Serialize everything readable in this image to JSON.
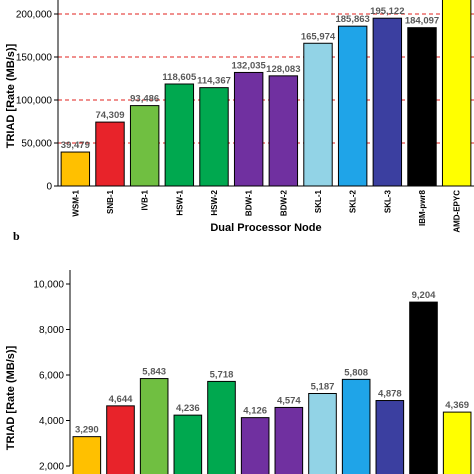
{
  "panel_label": "b",
  "colors": {
    "WSM": "#ffc000",
    "SNB": "#e8232a",
    "IVB": "#70bf41",
    "HSW": "#00a84f",
    "BDW": "#7030a0",
    "SKL-1": "#92d3e6",
    "SKL-2": "#1fa4e8",
    "SKL-3": "#3b3fa0",
    "IBM": "#000000",
    "AMD": "#ffff00",
    "reference_line": "#e0201e"
  },
  "chart_data": [
    {
      "type": "bar",
      "title": "",
      "xlabel": "Dual Processor Node",
      "ylabel": "TRIAD [Rate (MB/s)]",
      "categories": [
        "WSM-1",
        "SNB-1",
        "IVB-1",
        "HSW-1",
        "HSW-2",
        "BDW-1",
        "BDW-2",
        "SKL-1",
        "SKL-2",
        "SKL-3",
        "IBM-pwr8",
        "AMD-EPYC"
      ],
      "values": [
        39479,
        74309,
        93486,
        118605,
        114367,
        132035,
        128083,
        165974,
        185863,
        195122,
        184097,
        225000
      ],
      "value_labels": [
        "39,479",
        "74,309",
        "93,486",
        "118,605",
        "114,367",
        "132,035",
        "128,083",
        "165,974",
        "185,863",
        "195,122",
        "184,097",
        null
      ],
      "bar_colors": [
        "WSM",
        "SNB",
        "IVB",
        "HSW",
        "HSW",
        "BDW",
        "BDW",
        "SKL-1",
        "SKL-2",
        "SKL-3",
        "IBM",
        "AMD"
      ],
      "yticks": [
        "0",
        "50,000",
        "100,000",
        "150,000",
        "200,000"
      ],
      "ylim": [
        0,
        200000
      ],
      "reference_lines": [
        50000,
        100000,
        150000,
        200000
      ],
      "grid": false
    },
    {
      "type": "bar",
      "title": "",
      "xlabel": "",
      "ylabel": "TRIAD [Rate (MB/s)]",
      "values": [
        3290,
        4644,
        5843,
        4236,
        5718,
        4126,
        4574,
        5187,
        5808,
        4878,
        9204,
        4369
      ],
      "value_labels": [
        "3,290",
        "4,644",
        "5,843",
        "4,236",
        "5,718",
        "4,126",
        "4,574",
        "5,187",
        "5,808",
        "4,878",
        "9,204",
        "4,369"
      ],
      "bar_colors": [
        "WSM",
        "SNB",
        "IVB",
        "HSW",
        "HSW",
        "BDW",
        "BDW",
        "SKL-1",
        "SKL-2",
        "SKL-3",
        "IBM",
        "AMD"
      ],
      "yticks": [
        "2,000",
        "4,000",
        "6,000",
        "8,000",
        "10,000"
      ],
      "ylim": [
        2000,
        10000
      ],
      "grid": false
    }
  ]
}
